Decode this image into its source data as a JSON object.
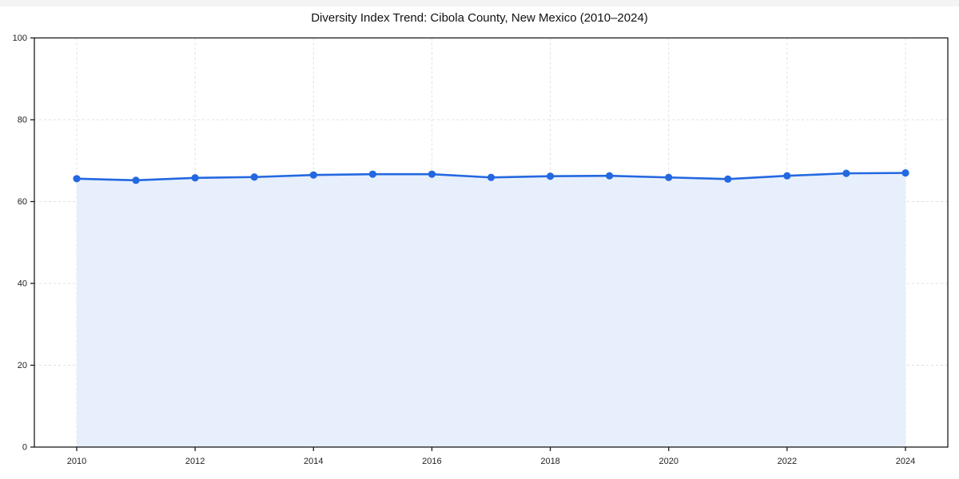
{
  "chart_data": {
    "type": "line",
    "title": "Diversity Index Trend: Cibola County, New Mexico (2010–2024)",
    "xlabel": "",
    "ylabel": "",
    "x": [
      2010,
      2011,
      2012,
      2013,
      2014,
      2015,
      2016,
      2017,
      2018,
      2019,
      2020,
      2021,
      2022,
      2023,
      2024
    ],
    "values": [
      65.6,
      65.2,
      65.8,
      66.0,
      66.5,
      66.7,
      66.7,
      65.9,
      66.2,
      66.3,
      65.9,
      65.5,
      66.3,
      66.9,
      67.0
    ],
    "ylim": [
      0,
      100
    ],
    "yticks": [
      0,
      20,
      40,
      60,
      80,
      100
    ],
    "ytick_labels": [
      "0",
      "20",
      "40",
      "60",
      "80",
      "100"
    ],
    "xticks": [
      2010,
      2012,
      2014,
      2016,
      2018,
      2020,
      2022,
      2024
    ],
    "xtick_labels": [
      "2010",
      "2012",
      "2014",
      "2016",
      "2018",
      "2020",
      "2022",
      "2024"
    ],
    "grid": true,
    "legend": "none",
    "colors": {
      "line": "#2368e0",
      "marker": "#2368e0",
      "fill": "#e7effc",
      "grid": "#e0e0e0",
      "spine": "#1a1a1a",
      "tick_text": "#222222"
    }
  }
}
